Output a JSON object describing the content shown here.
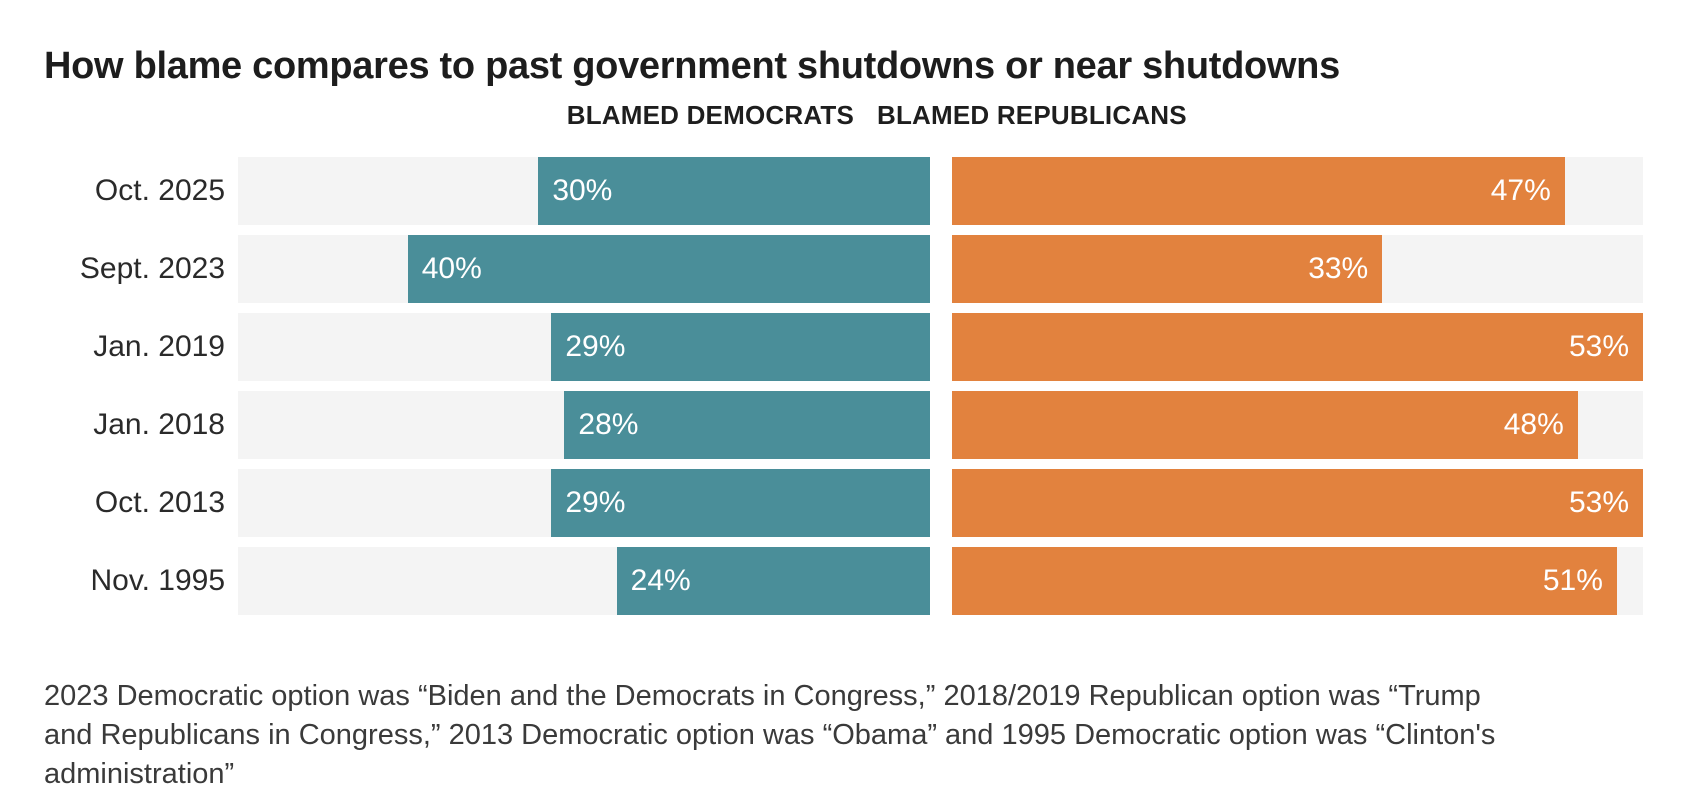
{
  "title": "How blame compares to past government shutdowns or near shutdowns",
  "columns": {
    "dem": "BLAMED DEMOCRATS",
    "rep": "BLAMED REPUBLICANS"
  },
  "footnote": "2023 Democratic option was “Biden and the Democrats in Congress,” 2018/2019 Republican option was “Trump and Republicans in Congress,” 2013 Democratic option was “Obama” and 1995 Democratic option was “Clinton's administration”",
  "colors": {
    "dem_bar": "#4a8e99",
    "rep_bar": "#e2823e",
    "track": "#f4f4f4",
    "title_text": "#1d1d1d",
    "label_text": "#2a2a2a",
    "footnote_text": "#3a3a3a",
    "bar_value_text": "#ffffff"
  },
  "chart_data": {
    "type": "bar",
    "orientation": "horizontal",
    "diverging_columns": true,
    "title": "How blame compares to past government shutdowns or near shutdowns",
    "categories": [
      "Oct. 2025",
      "Sept. 2023",
      "Jan. 2019",
      "Jan. 2018",
      "Oct. 2013",
      "Nov. 1995"
    ],
    "series": [
      {
        "name": "BLAMED DEMOCRATS",
        "values": [
          30,
          40,
          29,
          28,
          29,
          24
        ],
        "color": "#4a8e99"
      },
      {
        "name": "BLAMED REPUBLICANS",
        "values": [
          47,
          33,
          53,
          48,
          53,
          51
        ],
        "color": "#e2823e"
      }
    ],
    "value_suffix": "%",
    "xlim": [
      0,
      53
    ],
    "grid": false,
    "legend_position": "column-headers",
    "rows": [
      {
        "label": "Oct. 2025",
        "dem": 30,
        "dem_label": "30%",
        "rep": 47,
        "rep_label": "47%"
      },
      {
        "label": "Sept. 2023",
        "dem": 40,
        "dem_label": "40%",
        "rep": 33,
        "rep_label": "33%"
      },
      {
        "label": "Jan. 2019",
        "dem": 29,
        "dem_label": "29%",
        "rep": 53,
        "rep_label": "53%"
      },
      {
        "label": "Jan. 2018",
        "dem": 28,
        "dem_label": "28%",
        "rep": 48,
        "rep_label": "48%"
      },
      {
        "label": "Oct. 2013",
        "dem": 29,
        "dem_label": "29%",
        "rep": 53,
        "rep_label": "53%"
      },
      {
        "label": "Nov. 1995",
        "dem": 24,
        "dem_label": "24%",
        "rep": 51,
        "rep_label": "51%"
      }
    ]
  }
}
